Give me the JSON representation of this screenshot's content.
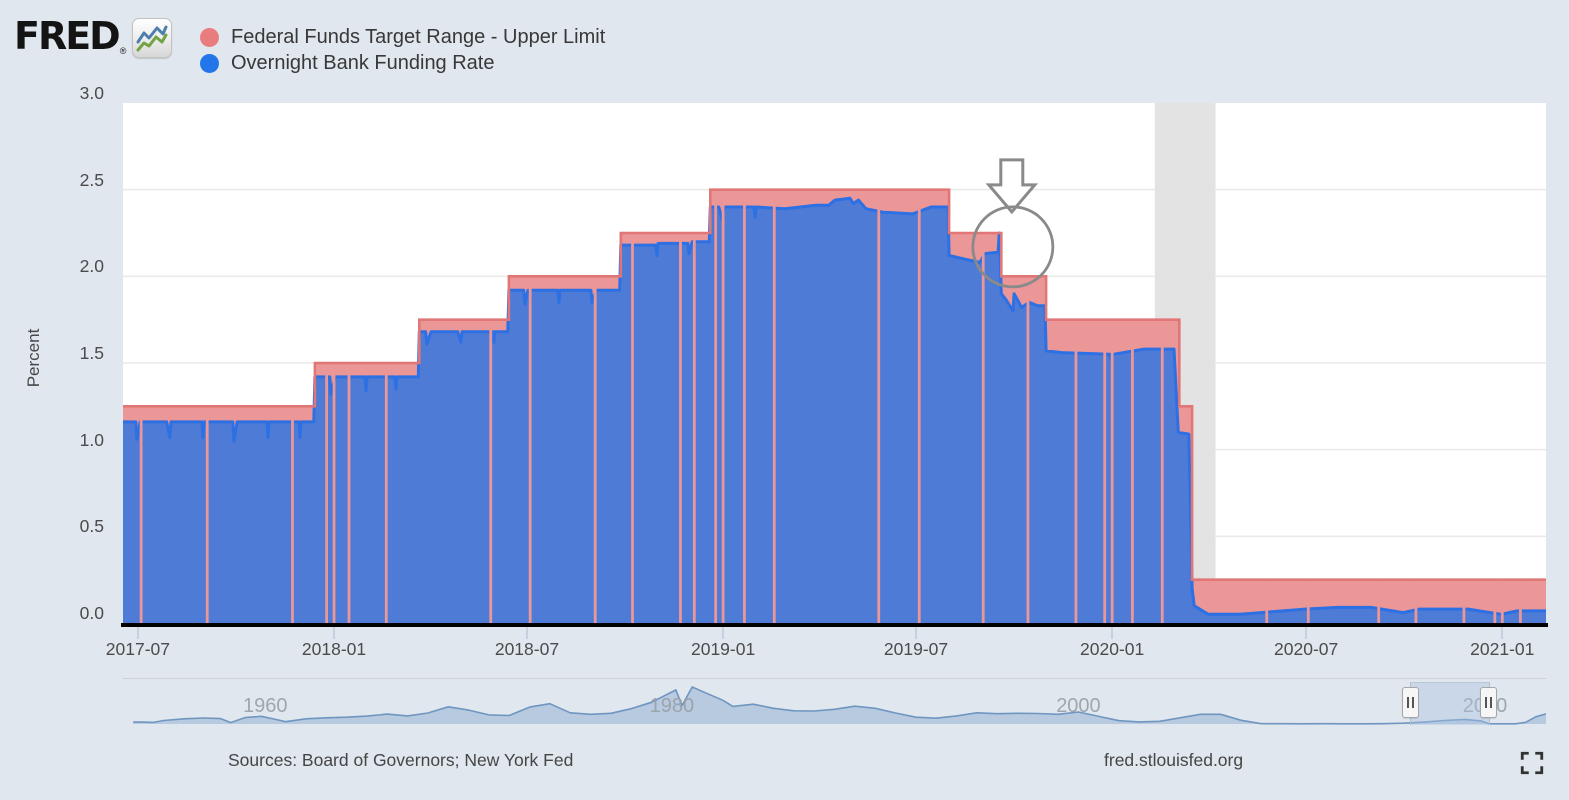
{
  "header": {
    "logo_text": "FRED",
    "logo_registered": "®",
    "legend": [
      {
        "label": "Federal Funds Target Range - Upper Limit",
        "color": "#e97d7d"
      },
      {
        "label": "Overnight Bank Funding Rate",
        "color": "#2276e9"
      }
    ]
  },
  "footer": {
    "sources": "Sources: Board of Governors; New York Fed",
    "site": "fred.stlouisfed.org"
  },
  "colors": {
    "page_background": "#e0e7ee",
    "plot_background": "#ffffff",
    "gridline": "#e9e9e9",
    "recession_band": "#e3e3e3",
    "target_fill": "#eb9697",
    "target_line": "#e17676",
    "obfr_fill": "#4e7bd5",
    "obfr_line": "#2c70e4",
    "axis_line": "#000000",
    "annotation": "#8a8a8a",
    "nav_fill": "#a9c0db",
    "nav_line": "#6f96c0"
  },
  "chart_data": {
    "type": "area",
    "ylabel": "Percent",
    "ylim": [
      0.0,
      3.0
    ],
    "grid": "horizontal",
    "legend_position": "top-left",
    "x_domain": [
      "2017-06-17",
      "2021-02-11"
    ],
    "y_ticks": [
      {
        "label": "3.0",
        "value": 3.0
      },
      {
        "label": "2.5",
        "value": 2.5
      },
      {
        "label": "2.0",
        "value": 2.0
      },
      {
        "label": "1.5",
        "value": 1.5
      },
      {
        "label": "1.0",
        "value": 1.0
      },
      {
        "label": "0.5",
        "value": 0.5
      },
      {
        "label": "0.0",
        "value": 0.0
      }
    ],
    "x_ticks": [
      {
        "label": "2017-07",
        "date": "2017-07-01"
      },
      {
        "label": "2018-01",
        "date": "2018-01-01"
      },
      {
        "label": "2018-07",
        "date": "2018-07-01"
      },
      {
        "label": "2019-01",
        "date": "2019-01-01"
      },
      {
        "label": "2019-07",
        "date": "2019-07-01"
      },
      {
        "label": "2020-01",
        "date": "2020-01-01"
      },
      {
        "label": "2020-07",
        "date": "2020-07-01"
      },
      {
        "label": "2021-01",
        "date": "2021-01-01"
      }
    ],
    "series": [
      {
        "name": "Federal Funds Target Range - Upper Limit",
        "render": "step-area",
        "points": [
          [
            "2017-06-17",
            1.25
          ],
          [
            "2017-12-14",
            1.5
          ],
          [
            "2018-03-22",
            1.75
          ],
          [
            "2018-06-14",
            2.0
          ],
          [
            "2018-09-27",
            2.25
          ],
          [
            "2018-12-20",
            2.5
          ],
          [
            "2019-08-01",
            2.25
          ],
          [
            "2019-09-19",
            2.0
          ],
          [
            "2019-10-31",
            1.75
          ],
          [
            "2020-03-04",
            1.25
          ],
          [
            "2020-03-16",
            0.25
          ]
        ]
      },
      {
        "name": "Overnight Bank Funding Rate",
        "render": "area",
        "points": [
          [
            "2017-06-17",
            1.16
          ],
          [
            "2017-06-29",
            1.16
          ],
          [
            "2017-06-30",
            1.06
          ],
          [
            "2017-07-03",
            1.16
          ],
          [
            "2017-07-28",
            1.16
          ],
          [
            "2017-07-31",
            1.07
          ],
          [
            "2017-08-01",
            1.16
          ],
          [
            "2017-08-30",
            1.16
          ],
          [
            "2017-08-31",
            1.07
          ],
          [
            "2017-09-01",
            1.16
          ],
          [
            "2017-09-28",
            1.16
          ],
          [
            "2017-09-29",
            1.05
          ],
          [
            "2017-10-02",
            1.16
          ],
          [
            "2017-10-30",
            1.16
          ],
          [
            "2017-10-31",
            1.07
          ],
          [
            "2017-11-01",
            1.16
          ],
          [
            "2017-11-29",
            1.16
          ],
          [
            "2017-11-30",
            1.07
          ],
          [
            "2017-12-01",
            1.16
          ],
          [
            "2017-12-13",
            1.16
          ],
          [
            "2017-12-14",
            1.42
          ],
          [
            "2017-12-28",
            1.42
          ],
          [
            "2017-12-29",
            1.32
          ],
          [
            "2018-01-02",
            1.42
          ],
          [
            "2018-01-30",
            1.42
          ],
          [
            "2018-01-31",
            1.34
          ],
          [
            "2018-02-01",
            1.42
          ],
          [
            "2018-02-27",
            1.42
          ],
          [
            "2018-02-28",
            1.35
          ],
          [
            "2018-03-01",
            1.42
          ],
          [
            "2018-03-21",
            1.42
          ],
          [
            "2018-03-22",
            1.68
          ],
          [
            "2018-03-28",
            1.68
          ],
          [
            "2018-03-29",
            1.61
          ],
          [
            "2018-04-02",
            1.68
          ],
          [
            "2018-04-27",
            1.68
          ],
          [
            "2018-04-30",
            1.62
          ],
          [
            "2018-05-01",
            1.68
          ],
          [
            "2018-05-30",
            1.68
          ],
          [
            "2018-05-31",
            1.62
          ],
          [
            "2018-06-01",
            1.68
          ],
          [
            "2018-06-13",
            1.68
          ],
          [
            "2018-06-14",
            1.92
          ],
          [
            "2018-06-28",
            1.92
          ],
          [
            "2018-06-29",
            1.84
          ],
          [
            "2018-07-02",
            1.92
          ],
          [
            "2018-07-30",
            1.92
          ],
          [
            "2018-07-31",
            1.85
          ],
          [
            "2018-08-01",
            1.92
          ],
          [
            "2018-08-30",
            1.92
          ],
          [
            "2018-08-31",
            1.85
          ],
          [
            "2018-09-04",
            1.92
          ],
          [
            "2018-09-26",
            1.92
          ],
          [
            "2018-09-27",
            2.18
          ],
          [
            "2018-10-30",
            2.18
          ],
          [
            "2018-10-31",
            2.12
          ],
          [
            "2018-11-01",
            2.19
          ],
          [
            "2018-11-29",
            2.19
          ],
          [
            "2018-11-30",
            2.13
          ],
          [
            "2018-12-03",
            2.2
          ],
          [
            "2018-12-19",
            2.2
          ],
          [
            "2018-12-20",
            2.4
          ],
          [
            "2018-12-28",
            2.4
          ],
          [
            "2018-12-31",
            2.33
          ],
          [
            "2019-01-02",
            2.4
          ],
          [
            "2019-01-30",
            2.4
          ],
          [
            "2019-01-31",
            2.34
          ],
          [
            "2019-02-01",
            2.4
          ],
          [
            "2019-02-28",
            2.39
          ],
          [
            "2019-03-29",
            2.41
          ],
          [
            "2019-04-10",
            2.41
          ],
          [
            "2019-04-16",
            2.44
          ],
          [
            "2019-04-30",
            2.45
          ],
          [
            "2019-05-03",
            2.42
          ],
          [
            "2019-05-08",
            2.44
          ],
          [
            "2019-05-15",
            2.39
          ],
          [
            "2019-05-31",
            2.37
          ],
          [
            "2019-06-28",
            2.36
          ],
          [
            "2019-07-15",
            2.4
          ],
          [
            "2019-07-31",
            2.4
          ],
          [
            "2019-08-01",
            2.12
          ],
          [
            "2019-08-15",
            2.1
          ],
          [
            "2019-08-30",
            2.08
          ],
          [
            "2019-09-03",
            2.13
          ],
          [
            "2019-09-16",
            2.14
          ],
          [
            "2019-09-17",
            2.25
          ],
          [
            "2019-09-18",
            2.1
          ],
          [
            "2019-09-19",
            1.9
          ],
          [
            "2019-09-24",
            1.86
          ],
          [
            "2019-09-30",
            1.8
          ],
          [
            "2019-10-01",
            1.9
          ],
          [
            "2019-10-08",
            1.82
          ],
          [
            "2019-10-15",
            1.85
          ],
          [
            "2019-10-23",
            1.83
          ],
          [
            "2019-10-30",
            1.83
          ],
          [
            "2019-10-31",
            1.57
          ],
          [
            "2019-11-15",
            1.56
          ],
          [
            "2019-12-30",
            1.55
          ],
          [
            "2019-12-31",
            1.52
          ],
          [
            "2020-01-02",
            1.55
          ],
          [
            "2020-01-31",
            1.58
          ],
          [
            "2020-02-28",
            1.58
          ],
          [
            "2020-03-03",
            1.1
          ],
          [
            "2020-03-13",
            1.09
          ],
          [
            "2020-03-16",
            0.2
          ],
          [
            "2020-03-18",
            0.1
          ],
          [
            "2020-03-31",
            0.05
          ],
          [
            "2020-04-30",
            0.05
          ],
          [
            "2020-06-30",
            0.08
          ],
          [
            "2020-07-31",
            0.09
          ],
          [
            "2020-08-31",
            0.09
          ],
          [
            "2020-09-30",
            0.06
          ],
          [
            "2020-10-15",
            0.08
          ],
          [
            "2020-11-30",
            0.08
          ],
          [
            "2020-12-31",
            0.05
          ],
          [
            "2021-01-15",
            0.07
          ],
          [
            "2021-02-11",
            0.07
          ]
        ]
      }
    ],
    "obfr_gap_dates": [
      "2017-07-04",
      "2017-09-04",
      "2017-11-23",
      "2017-12-25",
      "2018-01-01",
      "2018-01-15",
      "2018-02-19",
      "2018-05-28",
      "2018-07-04",
      "2018-09-03",
      "2018-10-08",
      "2018-11-22",
      "2018-12-05",
      "2018-12-25",
      "2019-01-01",
      "2019-01-21",
      "2019-02-18",
      "2019-05-27",
      "2019-07-04",
      "2019-09-02",
      "2019-10-14",
      "2019-11-28",
      "2019-12-25",
      "2020-01-01",
      "2020-01-20",
      "2020-02-17",
      "2020-05-25",
      "2020-07-03",
      "2020-09-07",
      "2020-10-12",
      "2020-11-26",
      "2020-12-25",
      "2021-01-01",
      "2021-01-18"
    ],
    "recession_band": {
      "start": "2020-02-10",
      "end": "2020-04-07"
    },
    "annotation": {
      "type": "arrow-circle",
      "date": "2019-09-27",
      "value": 2.17
    },
    "navigator": {
      "type": "area",
      "x_domain": [
        1953,
        2023
      ],
      "ymax": 20,
      "decade_ticks": [
        {
          "label": "1960",
          "year": 1960
        },
        {
          "label": "1980",
          "year": 1980
        },
        {
          "label": "2000",
          "year": 2000
        },
        {
          "label": "2020",
          "year": 2020
        }
      ],
      "window": {
        "x1_frac": 0.9045,
        "x2_frac": 0.9593
      },
      "points": [
        [
          1953.5,
          1.0
        ],
        [
          1954,
          1.0
        ],
        [
          1954.5,
          0.85
        ],
        [
          1955,
          1.8
        ],
        [
          1956,
          2.7
        ],
        [
          1957,
          3.1
        ],
        [
          1957.8,
          2.8
        ],
        [
          1958.3,
          0.7
        ],
        [
          1959,
          3.3
        ],
        [
          1959.8,
          4.0
        ],
        [
          1960.5,
          2.4
        ],
        [
          1961,
          1.2
        ],
        [
          1962,
          2.7
        ],
        [
          1963,
          3.2
        ],
        [
          1964,
          3.5
        ],
        [
          1965,
          4.1
        ],
        [
          1966,
          5.1
        ],
        [
          1967,
          4.2
        ],
        [
          1968,
          5.7
        ],
        [
          1969,
          8.9
        ],
        [
          1970,
          7.2
        ],
        [
          1971,
          4.7
        ],
        [
          1972,
          4.4
        ],
        [
          1973,
          8.7
        ],
        [
          1974,
          10.5
        ],
        [
          1975,
          5.8
        ],
        [
          1976,
          5.0
        ],
        [
          1977,
          5.5
        ],
        [
          1978,
          7.9
        ],
        [
          1979,
          11.2
        ],
        [
          1980.2,
          17.6
        ],
        [
          1980.5,
          9.5
        ],
        [
          1981,
          19.1
        ],
        [
          1981.7,
          15.9
        ],
        [
          1982.5,
          12.3
        ],
        [
          1983,
          9.1
        ],
        [
          1984,
          10.2
        ],
        [
          1985,
          8.1
        ],
        [
          1986,
          6.8
        ],
        [
          1987,
          6.7
        ],
        [
          1988,
          7.6
        ],
        [
          1989,
          9.2
        ],
        [
          1990,
          8.1
        ],
        [
          1991,
          5.7
        ],
        [
          1992,
          3.5
        ],
        [
          1993,
          3.0
        ],
        [
          1994,
          4.2
        ],
        [
          1995,
          5.8
        ],
        [
          1996,
          5.3
        ],
        [
          1997,
          5.5
        ],
        [
          1998,
          5.4
        ],
        [
          1999,
          5.0
        ],
        [
          2000,
          6.2
        ],
        [
          2001,
          3.9
        ],
        [
          2002,
          1.7
        ],
        [
          2003,
          1.1
        ],
        [
          2004,
          1.4
        ],
        [
          2005,
          3.2
        ],
        [
          2006,
          5.0
        ],
        [
          2007,
          5.0
        ],
        [
          2008,
          1.9
        ],
        [
          2009,
          0.16
        ],
        [
          2010,
          0.18
        ],
        [
          2011,
          0.1
        ],
        [
          2012,
          0.14
        ],
        [
          2013,
          0.11
        ],
        [
          2014,
          0.09
        ],
        [
          2015,
          0.13
        ],
        [
          2016,
          0.4
        ],
        [
          2017,
          1.0
        ],
        [
          2018,
          1.8
        ],
        [
          2019,
          2.4
        ],
        [
          2019.8,
          1.6
        ],
        [
          2020.2,
          0.1
        ],
        [
          2021,
          0.08
        ],
        [
          2021.5,
          0.08
        ],
        [
          2022,
          0.9
        ],
        [
          2022.5,
          3.7
        ],
        [
          2023,
          5.2
        ]
      ]
    }
  }
}
